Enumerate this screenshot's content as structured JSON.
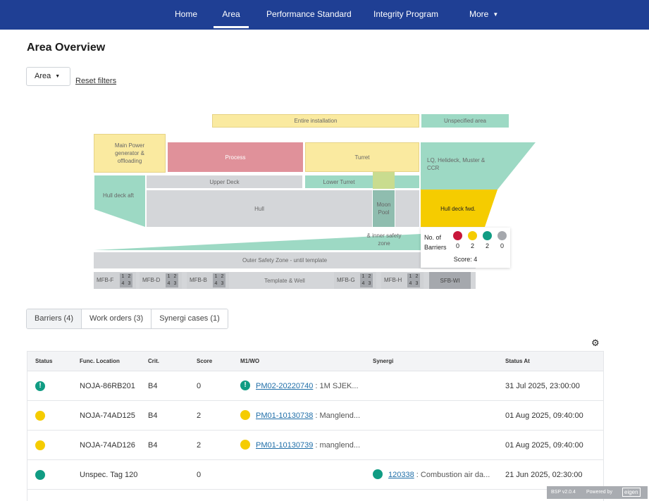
{
  "nav": {
    "items": [
      "Home",
      "Area",
      "Performance Standard",
      "Integrity Program",
      "More"
    ],
    "active": "Area"
  },
  "page": {
    "title": "Area Overview"
  },
  "filters": {
    "area_label": "Area",
    "reset_label": "Reset filters"
  },
  "map": {
    "entire_installation": "Entire installation",
    "unspecified_area": "Unspecified area",
    "main_power": "Main Power generator & offloading",
    "process": "Process",
    "turret": "Turret",
    "lq": "LQ, Helideck, Muster & CCR",
    "hull_deck_aft": "Hull deck aft",
    "upper_deck": "Upper Deck",
    "lower_turret": "Lower Turret",
    "hull": "Hull",
    "moon_pool": "Moon Pool",
    "hull_deck_fwd": "Hull deck fwd.",
    "inner_safety_zone": "& inner safety zone",
    "outer_safety_zone": "Outer Safety Zone - until template",
    "template_well": "Template & Well",
    "sfb_wi": "SFB-WI",
    "mfb": [
      {
        "label": "MFB-F",
        "cells": [
          "1",
          "2",
          "4",
          "3"
        ]
      },
      {
        "label": "MFB-D",
        "cells": [
          "1",
          "2",
          "4",
          "3"
        ]
      },
      {
        "label": "MFB-B",
        "cells": [
          "1",
          "2",
          "4",
          "3"
        ]
      },
      {
        "label": "MFB-G",
        "cells": [
          "1",
          "2",
          "4",
          "3"
        ]
      },
      {
        "label": "MFB-H",
        "cells": [
          "1",
          "2",
          "4",
          "3"
        ]
      }
    ],
    "colors": {
      "yellow": "#faeaa0",
      "teal": "#9dd9c4",
      "grey": "#d4d6d9",
      "red": "#e0919a",
      "highlight": "#f5cc00"
    }
  },
  "popup": {
    "title": "No. of Barriers",
    "counts": [
      "0",
      "2",
      "2",
      "0"
    ],
    "colors": [
      "#c8163a",
      "#f5cc00",
      "#109c83",
      "#a5a8ad"
    ],
    "score": "Score: 4"
  },
  "tabs": [
    "Barriers (4)",
    "Work orders (3)",
    "Synergi cases (1)"
  ],
  "table": {
    "columns": [
      "Status",
      "Func. Location",
      "Crit.",
      "Score",
      "M1/WO",
      "Synergi",
      "Status At"
    ],
    "rows": [
      {
        "status": "green-alert",
        "location": "NOJA-86RB201",
        "crit": "B4",
        "score": "0",
        "wo_link": "PM02-20220740",
        "wo_desc": ": 1M SJEK...",
        "synergi_link": "",
        "synergi_desc": "",
        "status_at": "31 Jul 2025, 23:00:00"
      },
      {
        "status": "yellow",
        "location": "NOJA-74AD125",
        "crit": "B4",
        "score": "2",
        "wo_link": "PM01-10130738",
        "wo_desc": ": Manglend...",
        "synergi_link": "",
        "synergi_desc": "",
        "status_at": "01 Aug 2025, 09:40:00"
      },
      {
        "status": "yellow",
        "location": "NOJA-74AD126",
        "crit": "B4",
        "score": "2",
        "wo_link": "PM01-10130739",
        "wo_desc": ": manglend...",
        "synergi_link": "",
        "synergi_desc": "",
        "status_at": "01 Aug 2025, 09:40:00"
      },
      {
        "status": "green",
        "location": "Unspec. Tag 120",
        "crit": "",
        "score": "0",
        "wo_link": "",
        "wo_desc": "",
        "synergi_link": "120338",
        "synergi_desc": ": Combustion air da...",
        "status_at": "21 Jun 2025, 02:30:00"
      }
    ]
  },
  "footer": {
    "version": "BSP v2.0.4",
    "powered_by": "Powered by",
    "brand": "eigen"
  }
}
